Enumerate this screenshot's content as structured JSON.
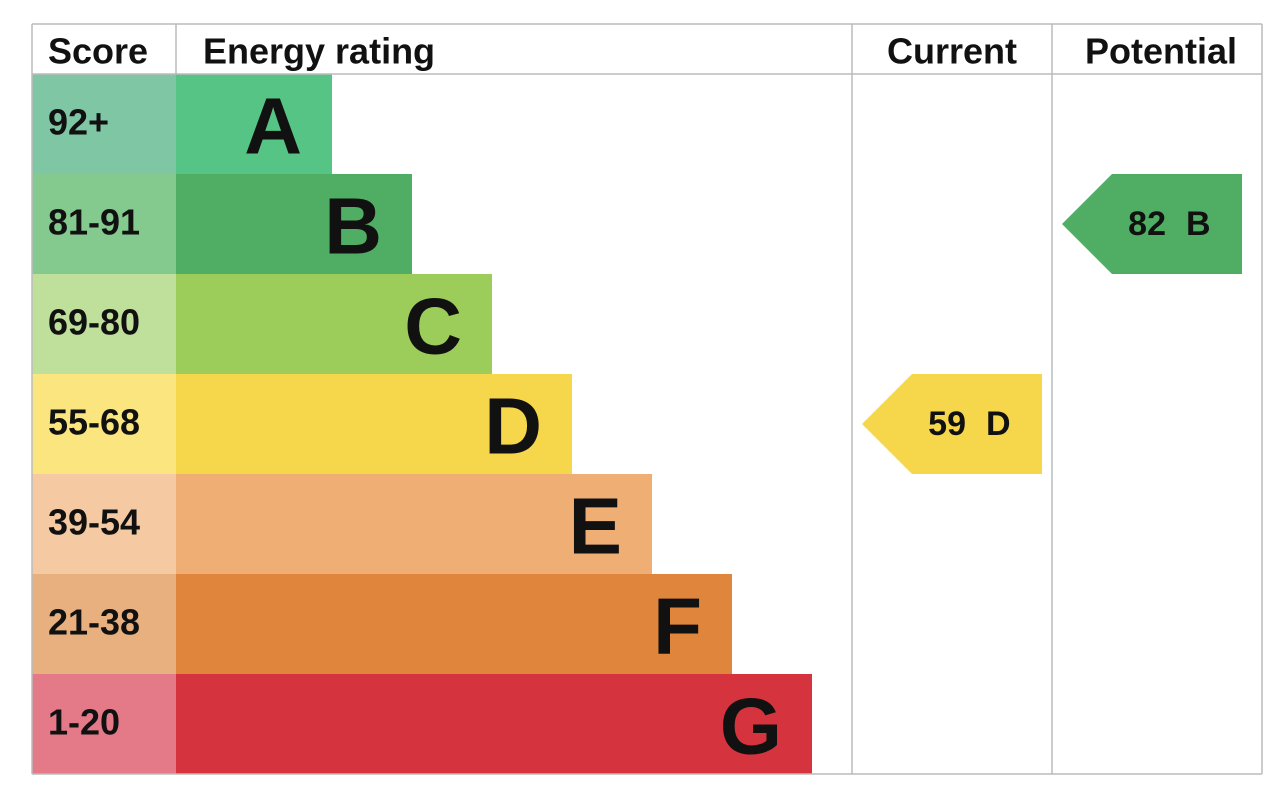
{
  "headers": {
    "score": "Score",
    "rating": "Energy rating",
    "current": "Current",
    "potential": "Potential"
  },
  "bands": [
    {
      "range": "92+",
      "letter": "A",
      "color": "#55c485",
      "score_color": "#7fc6a4"
    },
    {
      "range": "81-91",
      "letter": "B",
      "color": "#50ad64",
      "score_color": "#84c98d"
    },
    {
      "range": "69-80",
      "letter": "C",
      "color": "#9ccd5b",
      "score_color": "#bfe09a"
    },
    {
      "range": "55-68",
      "letter": "D",
      "color": "#f6d64a",
      "score_color": "#fbe57f"
    },
    {
      "range": "39-54",
      "letter": "E",
      "color": "#efaf74",
      "score_color": "#f5caa3"
    },
    {
      "range": "21-38",
      "letter": "F",
      "color": "#e0853c",
      "score_color": "#e9b07f"
    },
    {
      "range": "1-20",
      "letter": "G",
      "color": "#d5343f",
      "score_color": "#e47a88"
    }
  ],
  "current": {
    "score": 59,
    "rating": "D"
  },
  "potential": {
    "score": 82,
    "rating": "B"
  }
}
